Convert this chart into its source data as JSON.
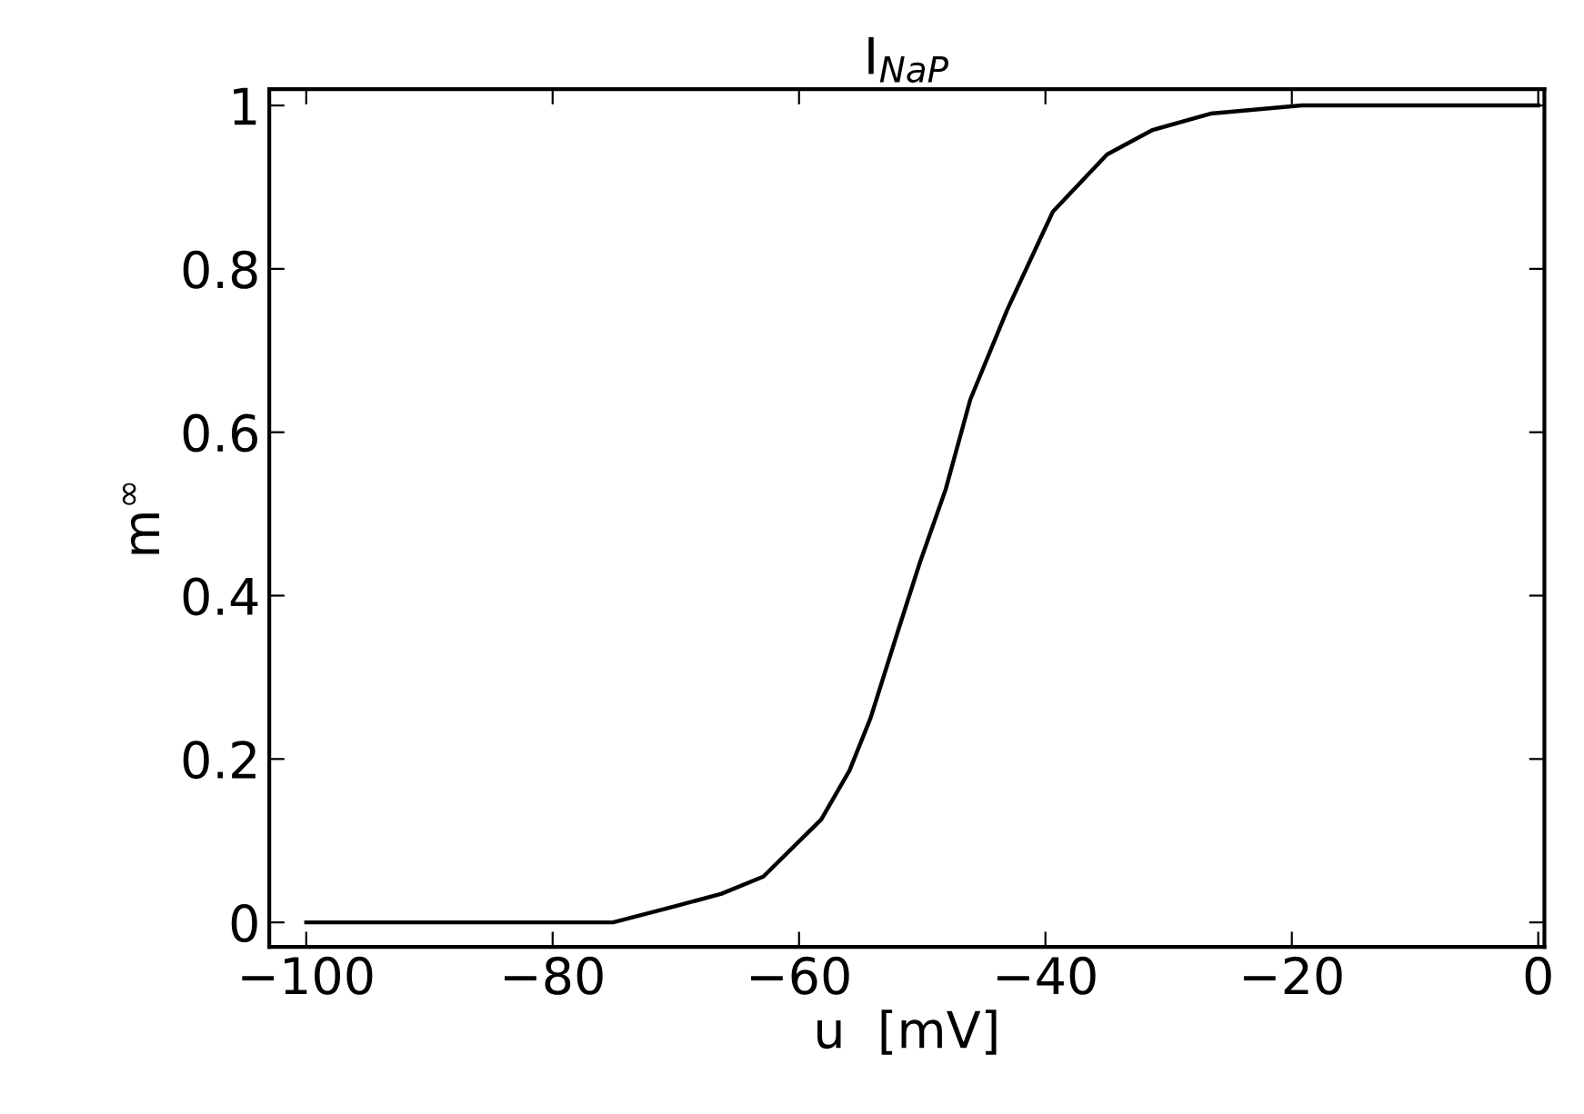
{
  "chart_data": {
    "type": "line",
    "title": "I$_{NaP}$",
    "xlabel": "u  [mV]",
    "ylabel": "m$^{∞}$",
    "xlim": [
      -103,
      0.5
    ],
    "ylim": [
      -0.03,
      1.02
    ],
    "xticks": [
      {
        "value": -100,
        "label": "−100"
      },
      {
        "value": -80,
        "label": "−80"
      },
      {
        "value": -60,
        "label": "−60"
      },
      {
        "value": -40,
        "label": "−40"
      },
      {
        "value": -20,
        "label": "−20"
      },
      0
    ],
    "yticks": [
      0,
      0.2,
      0.4,
      0.6,
      0.8,
      1
    ],
    "grid": false,
    "marker": "none",
    "line_style": "solid",
    "series": [
      {
        "color": "#000000",
        "x": [
          -100,
          -75.1,
          -70.0,
          -66.3,
          -62.9,
          -58.2,
          -55.9,
          -54.2,
          -51.9,
          -50.2,
          -48.1,
          -46.1,
          -43.1,
          -39.4,
          -35.0,
          -31.3,
          -26.6,
          -19.2,
          0
        ],
        "values": [
          0,
          0,
          0.02,
          0.035,
          0.056,
          0.126,
          0.186,
          0.25,
          0.36,
          0.44,
          0.53,
          0.64,
          0.75,
          0.87,
          0.94,
          0.97,
          0.99,
          1.0,
          1.0
        ]
      }
    ]
  }
}
